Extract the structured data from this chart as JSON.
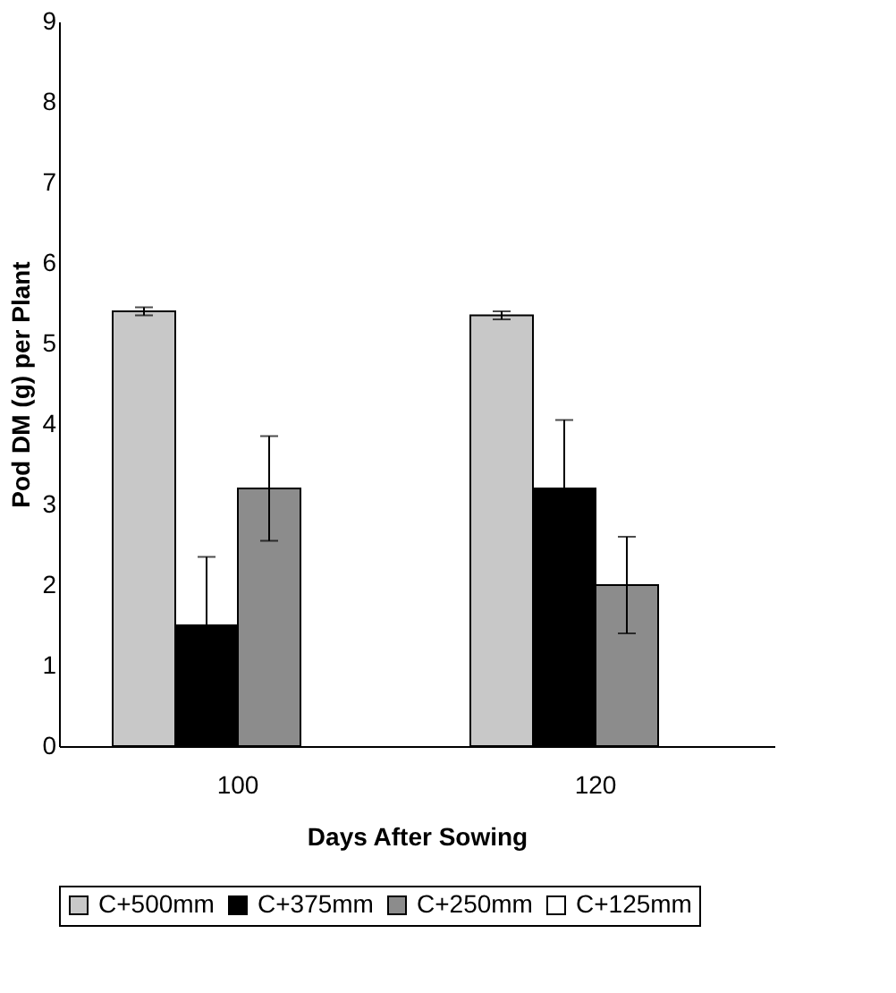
{
  "chart_data": {
    "type": "bar",
    "xlabel": "Days After Sowing",
    "ylabel": "Pod DM (g) per Plant",
    "categories": [
      "100",
      "120"
    ],
    "series": [
      {
        "name": "C+500mm",
        "color": "#c8c8c8",
        "values": [
          5.4,
          5.35
        ],
        "errors": [
          0.05,
          0.05
        ]
      },
      {
        "name": "C+375mm",
        "color": "#000000",
        "values": [
          1.5,
          3.2
        ],
        "errors": [
          0.85,
          0.85
        ]
      },
      {
        "name": "C+250mm",
        "color": "#8c8c8c",
        "values": [
          3.2,
          2.0
        ],
        "errors": [
          0.65,
          0.6
        ]
      },
      {
        "name": "C+125mm",
        "color": "#ffffff",
        "values": [
          null,
          null
        ]
      }
    ],
    "ylim": [
      0,
      9
    ],
    "yticks": [
      0,
      1,
      2,
      3,
      4,
      5,
      6,
      7,
      8,
      9
    ],
    "grid": false,
    "legend": "bottom"
  }
}
